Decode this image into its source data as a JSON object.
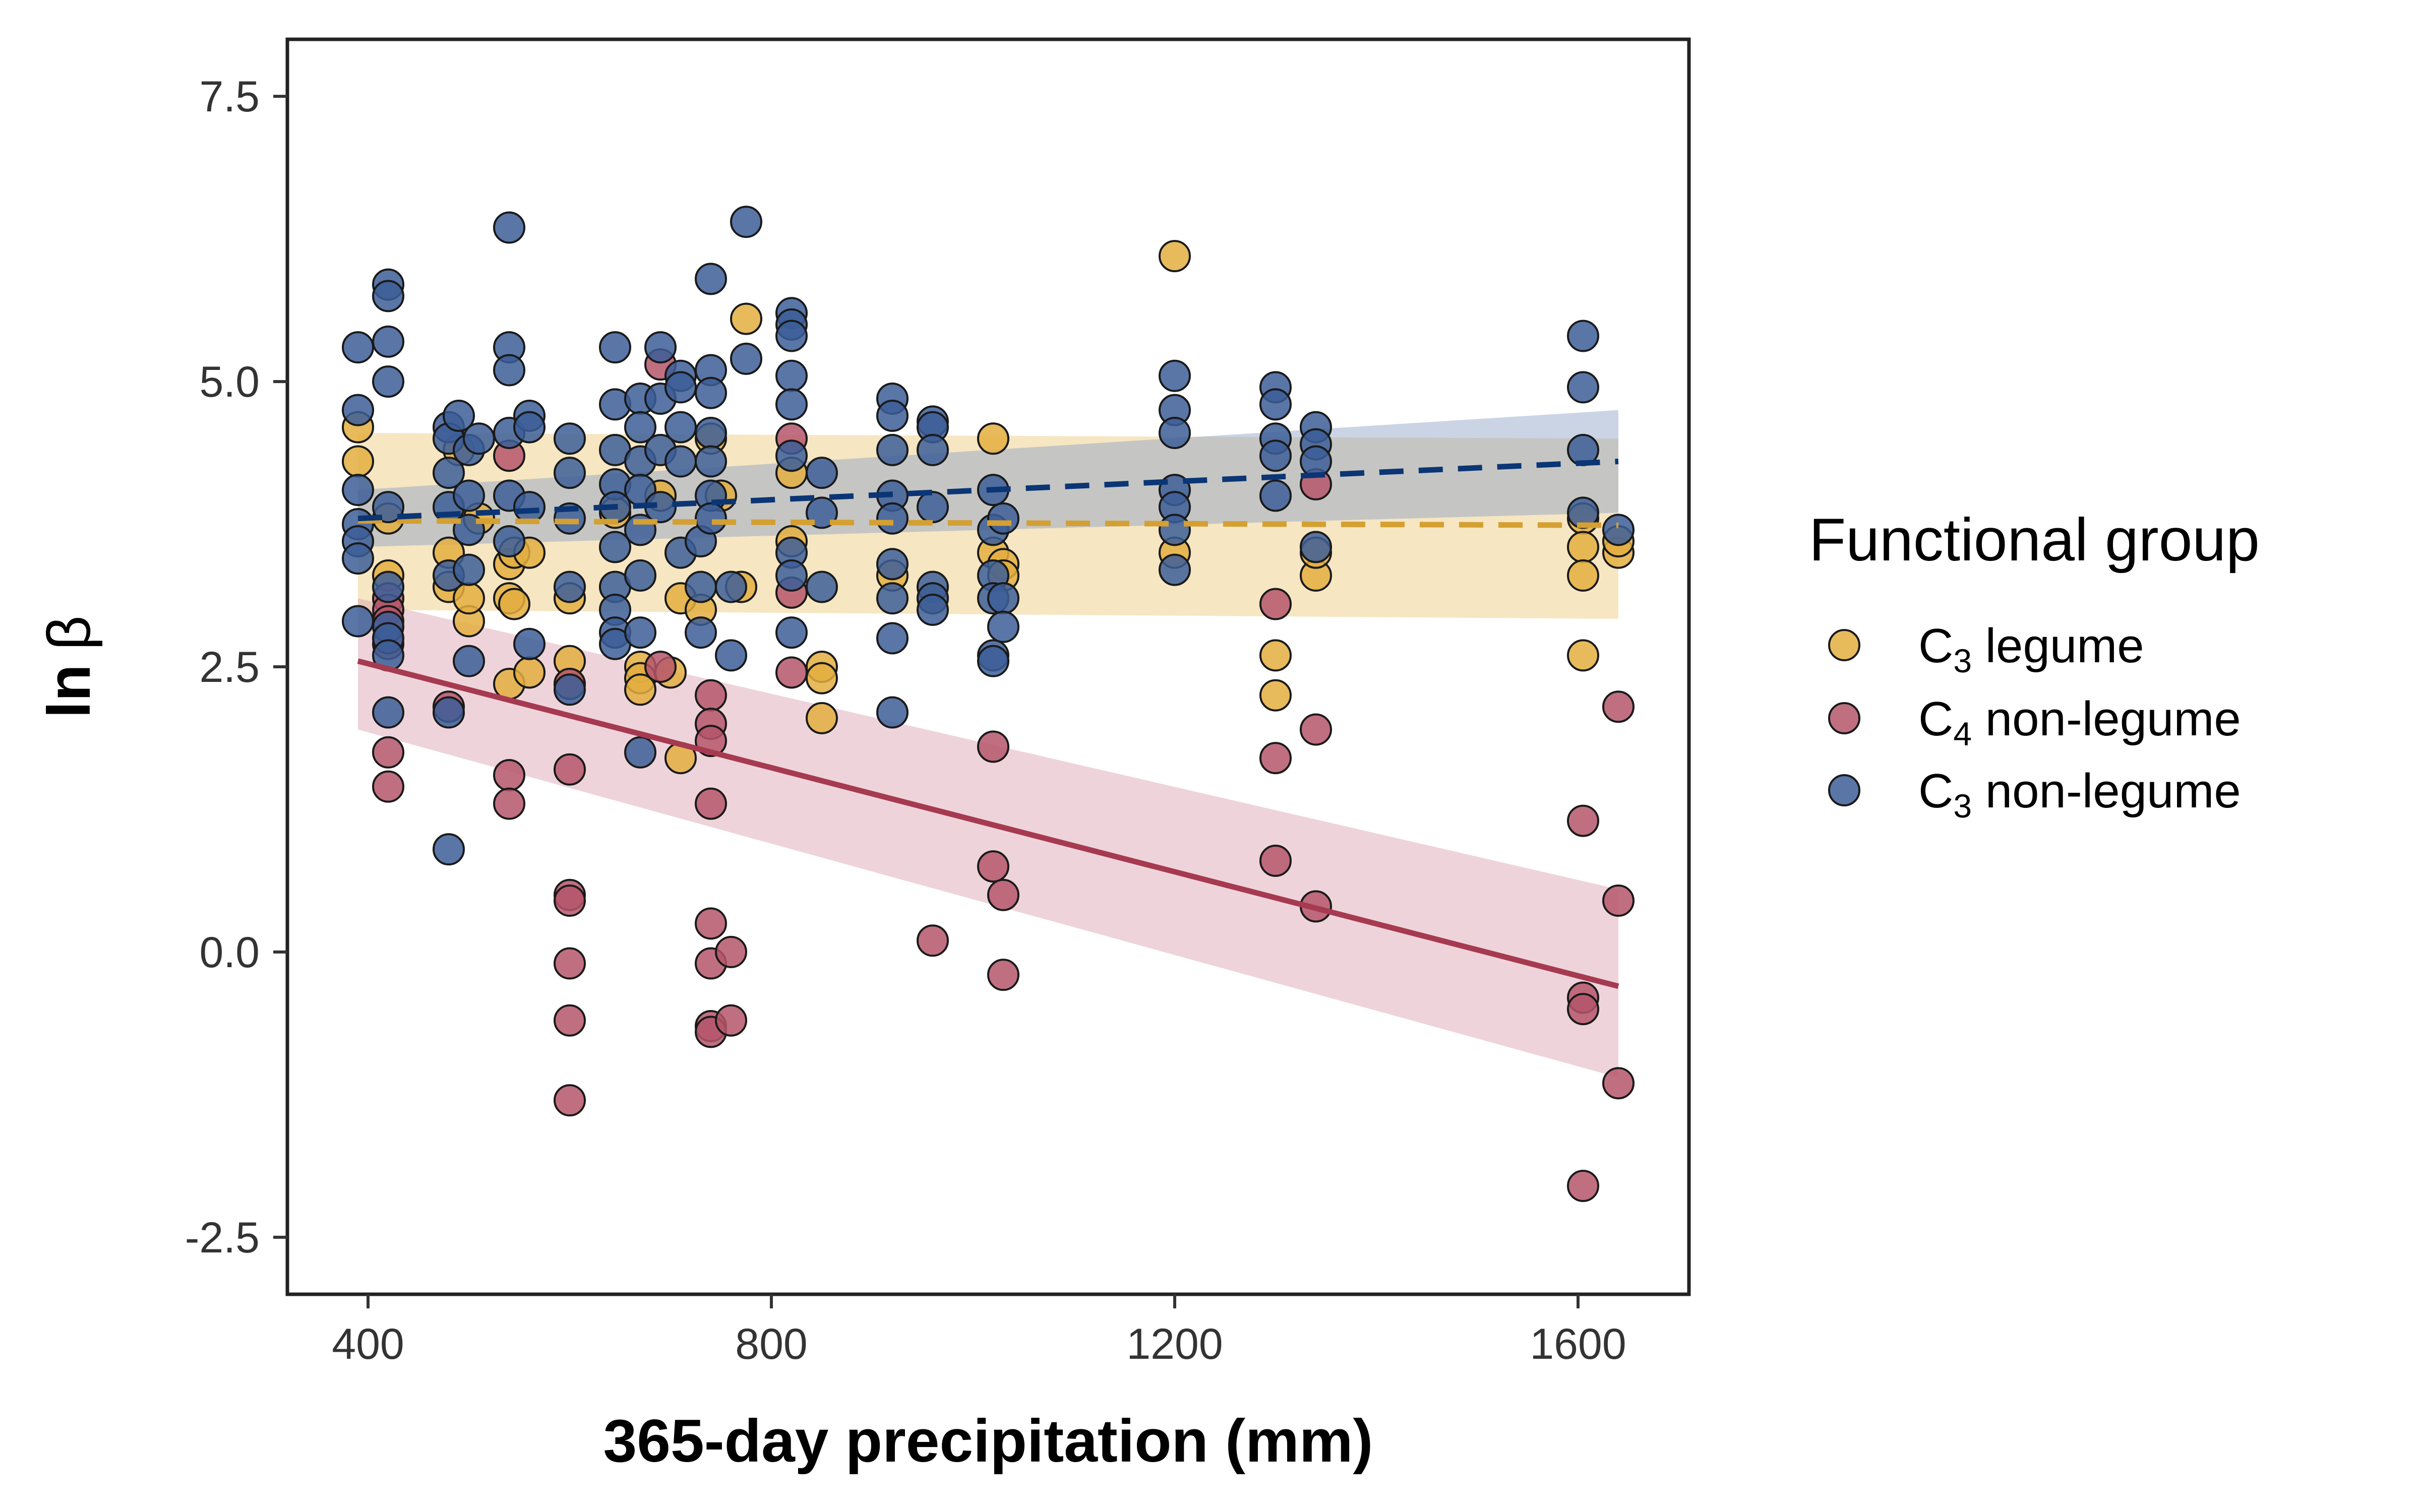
{
  "chart_data": {
    "type": "scatter",
    "xlabel": "365-day precipitation (mm)",
    "ylabel_main": "ln",
    "ylabel_symbol": "β",
    "xlim": [
      320,
      1710
    ],
    "ylim": [
      -3.0,
      8.0
    ],
    "x_ticks": [
      400,
      800,
      1200,
      1600
    ],
    "x_tick_labels": [
      "400",
      "800",
      "1200",
      "1600"
    ],
    "y_ticks": [
      -2.5,
      0.0,
      2.5,
      5.0,
      7.5
    ],
    "y_tick_labels": [
      "-2.5",
      "0.0",
      "2.5",
      "5.0",
      "7.5"
    ],
    "grid": false,
    "legend": {
      "title": "Functional group",
      "placement": "right",
      "entries": [
        {
          "prefix": "C",
          "sub": "3",
          "suffix": " legume"
        },
        {
          "prefix": "C",
          "sub": "4",
          "suffix": " non-legume"
        },
        {
          "prefix": "C",
          "sub": "3",
          "suffix": " non-legume"
        }
      ]
    },
    "series": [
      {
        "color": "#E3AE3F",
        "line_color": "#D4A032",
        "band_color": "#EBC878",
        "line_style": "dashed",
        "trend": {
          "x": [
            390,
            1640
          ],
          "y": [
            3.78,
            3.74
          ]
        },
        "band": {
          "lower": [
            3.0,
            2.92
          ],
          "upper": [
            4.55,
            4.5
          ]
        },
        "points": [
          [
            390,
            4.6
          ],
          [
            390,
            4.3
          ],
          [
            420,
            3.8
          ],
          [
            420,
            3.3
          ],
          [
            480,
            3.5
          ],
          [
            480,
            3.2
          ],
          [
            490,
            4.4
          ],
          [
            500,
            2.9
          ],
          [
            500,
            3.1
          ],
          [
            510,
            3.8
          ],
          [
            540,
            3.4
          ],
          [
            540,
            3.1
          ],
          [
            540,
            2.35
          ],
          [
            545,
            3.5
          ],
          [
            545,
            3.05
          ],
          [
            560,
            3.5
          ],
          [
            560,
            2.45
          ],
          [
            600,
            2.55
          ],
          [
            600,
            2.35
          ],
          [
            600,
            3.1
          ],
          [
            645,
            3.85
          ],
          [
            670,
            2.5
          ],
          [
            670,
            2.4
          ],
          [
            670,
            2.3
          ],
          [
            690,
            4.0
          ],
          [
            700,
            2.45
          ],
          [
            710,
            3.1
          ],
          [
            710,
            1.7
          ],
          [
            730,
            3.0
          ],
          [
            740,
            4.5
          ],
          [
            750,
            4.0
          ],
          [
            770,
            3.2
          ],
          [
            775,
            5.55
          ],
          [
            820,
            4.2
          ],
          [
            820,
            3.6
          ],
          [
            850,
            2.5
          ],
          [
            850,
            2.4
          ],
          [
            850,
            2.05
          ],
          [
            920,
            3.3
          ],
          [
            960,
            3.1
          ],
          [
            1020,
            4.5
          ],
          [
            1020,
            3.5
          ],
          [
            1030,
            3.4
          ],
          [
            1030,
            3.3
          ],
          [
            1200,
            6.1
          ],
          [
            1200,
            3.5
          ],
          [
            1300,
            2.6
          ],
          [
            1300,
            2.25
          ],
          [
            1340,
            3.3
          ],
          [
            1340,
            3.5
          ],
          [
            1605,
            3.8
          ],
          [
            1605,
            3.55
          ],
          [
            1605,
            3.3
          ],
          [
            1605,
            2.6
          ],
          [
            1640,
            3.5
          ],
          [
            1640,
            3.6
          ]
        ]
      },
      {
        "color": "#B5566B",
        "line_color": "#A63A50",
        "band_color": "#D9A0AC",
        "line_style": "solid",
        "trend": {
          "x": [
            390,
            1640
          ],
          "y": [
            2.55,
            -0.3
          ]
        },
        "band": {
          "lower": [
            1.95,
            -1.1
          ],
          "upper": [
            3.1,
            0.55
          ]
        },
        "points": [
          [
            420,
            3.1
          ],
          [
            420,
            3.0
          ],
          [
            420,
            2.9
          ],
          [
            420,
            2.7
          ],
          [
            420,
            1.75
          ],
          [
            420,
            1.45
          ],
          [
            480,
            2.15
          ],
          [
            540,
            4.35
          ],
          [
            540,
            1.55
          ],
          [
            540,
            1.3
          ],
          [
            600,
            2.35
          ],
          [
            600,
            1.6
          ],
          [
            600,
            0.5
          ],
          [
            600,
            0.45
          ],
          [
            600,
            -0.1
          ],
          [
            600,
            -0.6
          ],
          [
            600,
            -1.3
          ],
          [
            690,
            5.15
          ],
          [
            690,
            2.5
          ],
          [
            740,
            2.25
          ],
          [
            740,
            2.0
          ],
          [
            740,
            1.85
          ],
          [
            740,
            1.3
          ],
          [
            740,
            0.25
          ],
          [
            740,
            -0.1
          ],
          [
            740,
            -0.65
          ],
          [
            740,
            -0.7
          ],
          [
            760,
            0.0
          ],
          [
            760,
            -0.6
          ],
          [
            820,
            4.5
          ],
          [
            820,
            3.15
          ],
          [
            820,
            2.45
          ],
          [
            960,
            0.1
          ],
          [
            1020,
            1.8
          ],
          [
            1020,
            0.75
          ],
          [
            1030,
            0.5
          ],
          [
            1030,
            -0.2
          ],
          [
            1300,
            3.05
          ],
          [
            1300,
            1.7
          ],
          [
            1300,
            0.8
          ],
          [
            1340,
            4.1
          ],
          [
            1340,
            1.95
          ],
          [
            1340,
            0.4
          ],
          [
            1605,
            1.15
          ],
          [
            1605,
            -0.4
          ],
          [
            1605,
            -0.5
          ],
          [
            1605,
            -2.05
          ],
          [
            1640,
            2.15
          ],
          [
            1640,
            0.45
          ],
          [
            1640,
            -1.15
          ]
        ]
      },
      {
        "color": "#3C5E98",
        "line_color": "#0B3575",
        "band_color": "#8A9FC5",
        "line_style": "dashed",
        "trend": {
          "x": [
            390,
            1640
          ],
          "y": [
            3.8,
            4.3
          ]
        },
        "band": {
          "lower": [
            3.55,
            3.85
          ],
          "upper": [
            4.05,
            4.75
          ]
        },
        "points": [
          [
            390,
            5.3
          ],
          [
            390,
            4.75
          ],
          [
            390,
            4.05
          ],
          [
            390,
            3.75
          ],
          [
            390,
            3.6
          ],
          [
            390,
            3.45
          ],
          [
            390,
            2.9
          ],
          [
            420,
            5.85
          ],
          [
            420,
            5.75
          ],
          [
            420,
            5.35
          ],
          [
            420,
            5.0
          ],
          [
            420,
            3.9
          ],
          [
            420,
            3.2
          ],
          [
            420,
            2.85
          ],
          [
            420,
            2.75
          ],
          [
            420,
            2.6
          ],
          [
            420,
            2.1
          ],
          [
            480,
            4.6
          ],
          [
            480,
            4.5
          ],
          [
            480,
            4.2
          ],
          [
            480,
            3.9
          ],
          [
            480,
            3.3
          ],
          [
            480,
            2.1
          ],
          [
            480,
            0.9
          ],
          [
            490,
            4.7
          ],
          [
            500,
            4.4
          ],
          [
            500,
            4.0
          ],
          [
            500,
            3.7
          ],
          [
            500,
            3.35
          ],
          [
            500,
            2.55
          ],
          [
            510,
            4.5
          ],
          [
            540,
            6.35
          ],
          [
            540,
            5.3
          ],
          [
            540,
            5.1
          ],
          [
            540,
            4.55
          ],
          [
            540,
            4.0
          ],
          [
            540,
            3.6
          ],
          [
            560,
            4.7
          ],
          [
            560,
            4.6
          ],
          [
            560,
            3.9
          ],
          [
            560,
            2.7
          ],
          [
            600,
            4.5
          ],
          [
            600,
            4.2
          ],
          [
            600,
            3.8
          ],
          [
            600,
            3.2
          ],
          [
            600,
            2.3
          ],
          [
            645,
            5.3
          ],
          [
            645,
            4.8
          ],
          [
            645,
            4.4
          ],
          [
            645,
            4.1
          ],
          [
            645,
            3.9
          ],
          [
            645,
            3.55
          ],
          [
            645,
            3.2
          ],
          [
            645,
            3.0
          ],
          [
            645,
            2.8
          ],
          [
            645,
            2.7
          ],
          [
            670,
            4.85
          ],
          [
            670,
            4.6
          ],
          [
            670,
            4.3
          ],
          [
            670,
            4.05
          ],
          [
            670,
            3.7
          ],
          [
            670,
            3.3
          ],
          [
            670,
            2.8
          ],
          [
            670,
            1.75
          ],
          [
            690,
            5.3
          ],
          [
            690,
            4.85
          ],
          [
            690,
            4.4
          ],
          [
            690,
            3.9
          ],
          [
            710,
            5.05
          ],
          [
            710,
            4.95
          ],
          [
            710,
            4.6
          ],
          [
            710,
            4.3
          ],
          [
            710,
            3.5
          ],
          [
            730,
            3.6
          ],
          [
            730,
            3.2
          ],
          [
            730,
            2.8
          ],
          [
            740,
            5.9
          ],
          [
            740,
            5.1
          ],
          [
            740,
            4.9
          ],
          [
            740,
            4.55
          ],
          [
            740,
            4.3
          ],
          [
            740,
            4.0
          ],
          [
            740,
            3.8
          ],
          [
            760,
            3.2
          ],
          [
            760,
            2.6
          ],
          [
            775,
            6.4
          ],
          [
            775,
            5.2
          ],
          [
            820,
            5.6
          ],
          [
            820,
            5.5
          ],
          [
            820,
            5.4
          ],
          [
            820,
            5.05
          ],
          [
            820,
            4.8
          ],
          [
            820,
            4.35
          ],
          [
            820,
            3.5
          ],
          [
            820,
            3.3
          ],
          [
            820,
            2.8
          ],
          [
            850,
            4.2
          ],
          [
            850,
            3.85
          ],
          [
            850,
            3.2
          ],
          [
            920,
            4.85
          ],
          [
            920,
            4.7
          ],
          [
            920,
            4.4
          ],
          [
            920,
            4.0
          ],
          [
            920,
            3.8
          ],
          [
            920,
            3.4
          ],
          [
            920,
            3.1
          ],
          [
            920,
            2.75
          ],
          [
            920,
            2.1
          ],
          [
            960,
            4.65
          ],
          [
            960,
            4.6
          ],
          [
            960,
            4.4
          ],
          [
            960,
            3.9
          ],
          [
            960,
            3.2
          ],
          [
            960,
            3.1
          ],
          [
            960,
            3.0
          ],
          [
            1020,
            4.05
          ],
          [
            1020,
            3.7
          ],
          [
            1020,
            3.3
          ],
          [
            1020,
            3.1
          ],
          [
            1020,
            2.6
          ],
          [
            1020,
            2.55
          ],
          [
            1030,
            3.8
          ],
          [
            1030,
            3.1
          ],
          [
            1030,
            2.85
          ],
          [
            1200,
            5.05
          ],
          [
            1200,
            4.75
          ],
          [
            1200,
            4.55
          ],
          [
            1200,
            4.05
          ],
          [
            1200,
            3.9
          ],
          [
            1200,
            3.7
          ],
          [
            1200,
            3.35
          ],
          [
            1300,
            4.95
          ],
          [
            1300,
            4.8
          ],
          [
            1300,
            4.5
          ],
          [
            1300,
            4.35
          ],
          [
            1300,
            4.0
          ],
          [
            1340,
            4.6
          ],
          [
            1340,
            4.45
          ],
          [
            1340,
            4.3
          ],
          [
            1340,
            3.55
          ],
          [
            1605,
            5.4
          ],
          [
            1605,
            4.95
          ],
          [
            1605,
            4.4
          ],
          [
            1605,
            3.85
          ],
          [
            1640,
            3.7
          ]
        ]
      }
    ]
  }
}
